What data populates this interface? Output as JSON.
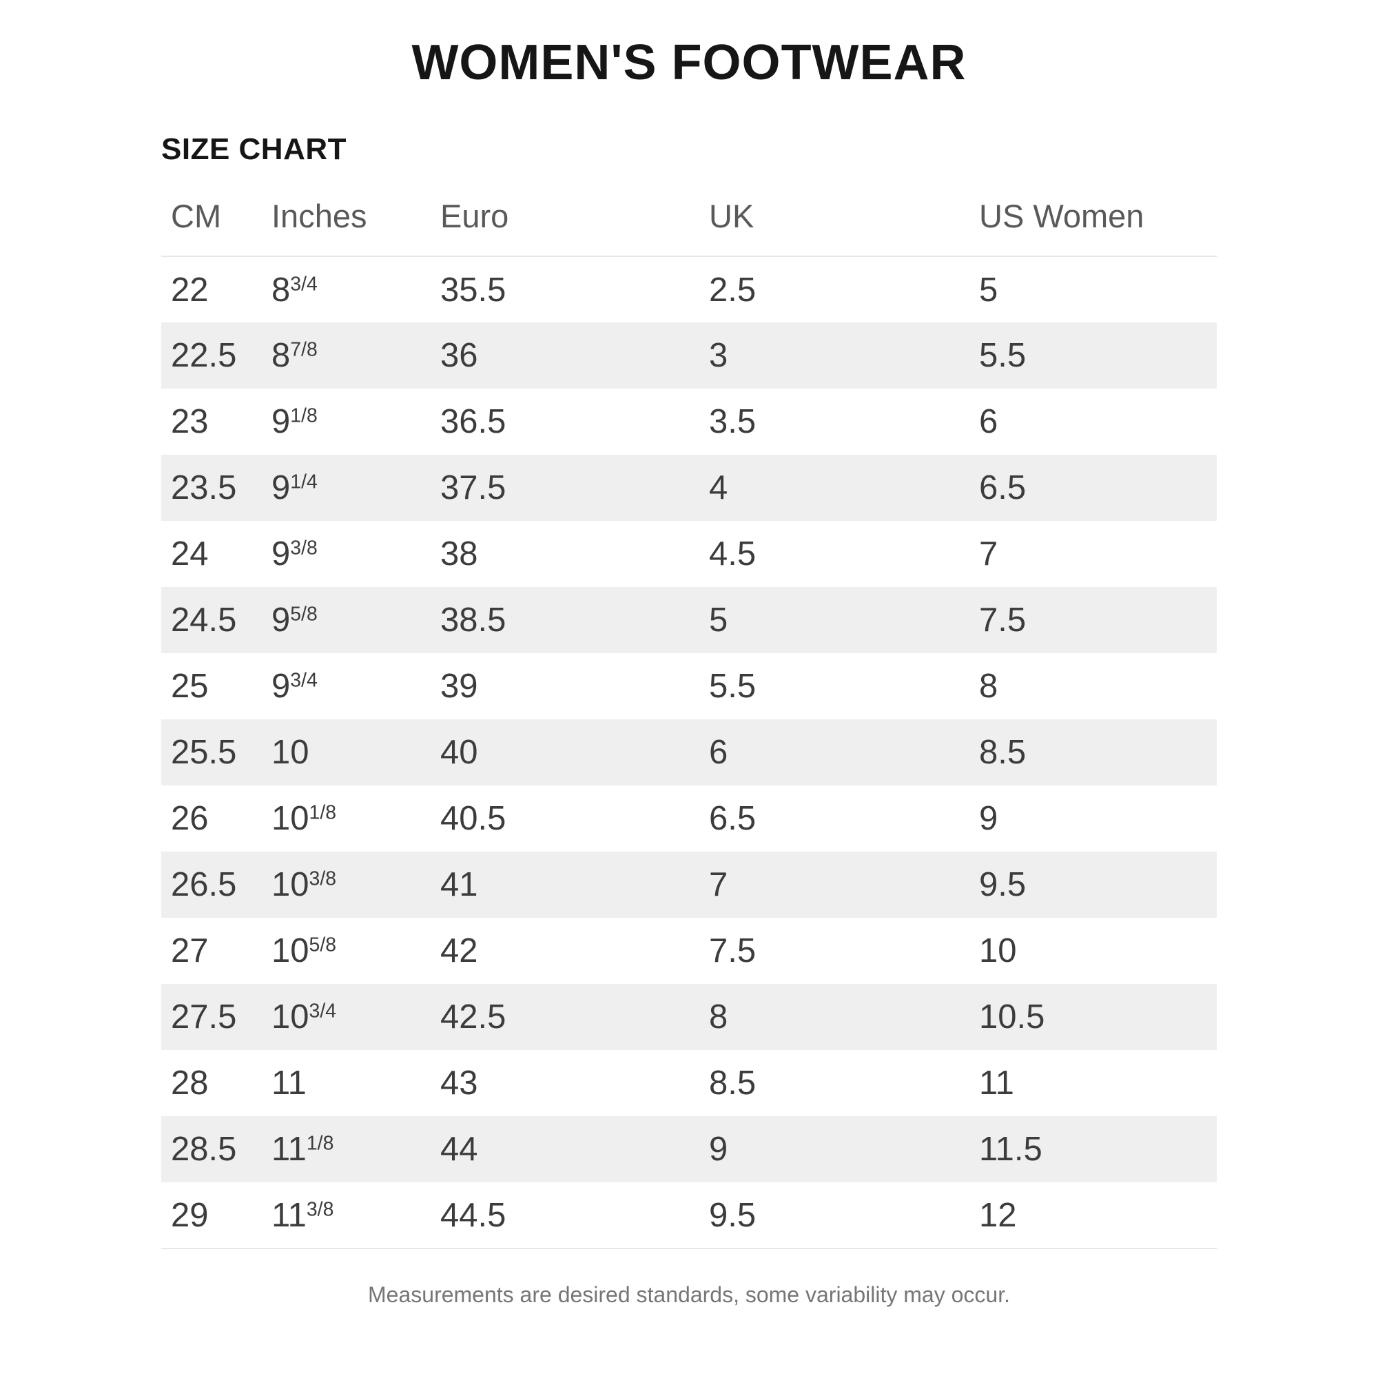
{
  "ui": {
    "title": "WOMEN'S FOOTWEAR",
    "section_title": "SIZE CHART",
    "footnote": "Measurements are desired standards, some variability may occur."
  },
  "colors": {
    "title_text": "#161616",
    "header_text": "#59595b",
    "body_text": "#3c3c3e",
    "stripe": "#efefef",
    "rule": "#e7e7e7",
    "footnote_text": "#76767a"
  },
  "chart_data": {
    "type": "table",
    "title": "WOMEN'S FOOTWEAR — SIZE CHART",
    "columns": [
      "CM",
      "Inches",
      "Euro",
      "UK",
      "US Women"
    ],
    "stripe_pattern": "even rows shaded",
    "rows": [
      {
        "cm": "22",
        "inches_base": "8",
        "inches_frac": "3/4",
        "euro": "35.5",
        "uk": "2.5",
        "us_women": "5"
      },
      {
        "cm": "22.5",
        "inches_base": "8",
        "inches_frac": "7/8",
        "euro": "36",
        "uk": "3",
        "us_women": "5.5"
      },
      {
        "cm": "23",
        "inches_base": "9",
        "inches_frac": "1/8",
        "euro": "36.5",
        "uk": "3.5",
        "us_women": "6"
      },
      {
        "cm": "23.5",
        "inches_base": "9",
        "inches_frac": "1/4",
        "euro": "37.5",
        "uk": "4",
        "us_women": "6.5"
      },
      {
        "cm": "24",
        "inches_base": "9",
        "inches_frac": "3/8",
        "euro": "38",
        "uk": "4.5",
        "us_women": "7"
      },
      {
        "cm": "24.5",
        "inches_base": "9",
        "inches_frac": "5/8",
        "euro": "38.5",
        "uk": "5",
        "us_women": "7.5"
      },
      {
        "cm": "25",
        "inches_base": "9",
        "inches_frac": "3/4",
        "euro": "39",
        "uk": "5.5",
        "us_women": "8"
      },
      {
        "cm": "25.5",
        "inches_base": "10",
        "inches_frac": "",
        "euro": "40",
        "uk": "6",
        "us_women": "8.5"
      },
      {
        "cm": "26",
        "inches_base": "10",
        "inches_frac": "1/8",
        "euro": "40.5",
        "uk": "6.5",
        "us_women": "9"
      },
      {
        "cm": "26.5",
        "inches_base": "10",
        "inches_frac": "3/8",
        "euro": "41",
        "uk": "7",
        "us_women": "9.5"
      },
      {
        "cm": "27",
        "inches_base": "10",
        "inches_frac": "5/8",
        "euro": "42",
        "uk": "7.5",
        "us_women": "10"
      },
      {
        "cm": "27.5",
        "inches_base": "10",
        "inches_frac": "3/4",
        "euro": "42.5",
        "uk": "8",
        "us_women": "10.5"
      },
      {
        "cm": "28",
        "inches_base": "11",
        "inches_frac": "",
        "euro": "43",
        "uk": "8.5",
        "us_women": "11"
      },
      {
        "cm": "28.5",
        "inches_base": "11",
        "inches_frac": "1/8",
        "euro": "44",
        "uk": "9",
        "us_women": "11.5"
      },
      {
        "cm": "29",
        "inches_base": "11",
        "inches_frac": "3/8",
        "euro": "44.5",
        "uk": "9.5",
        "us_women": "12"
      }
    ]
  }
}
